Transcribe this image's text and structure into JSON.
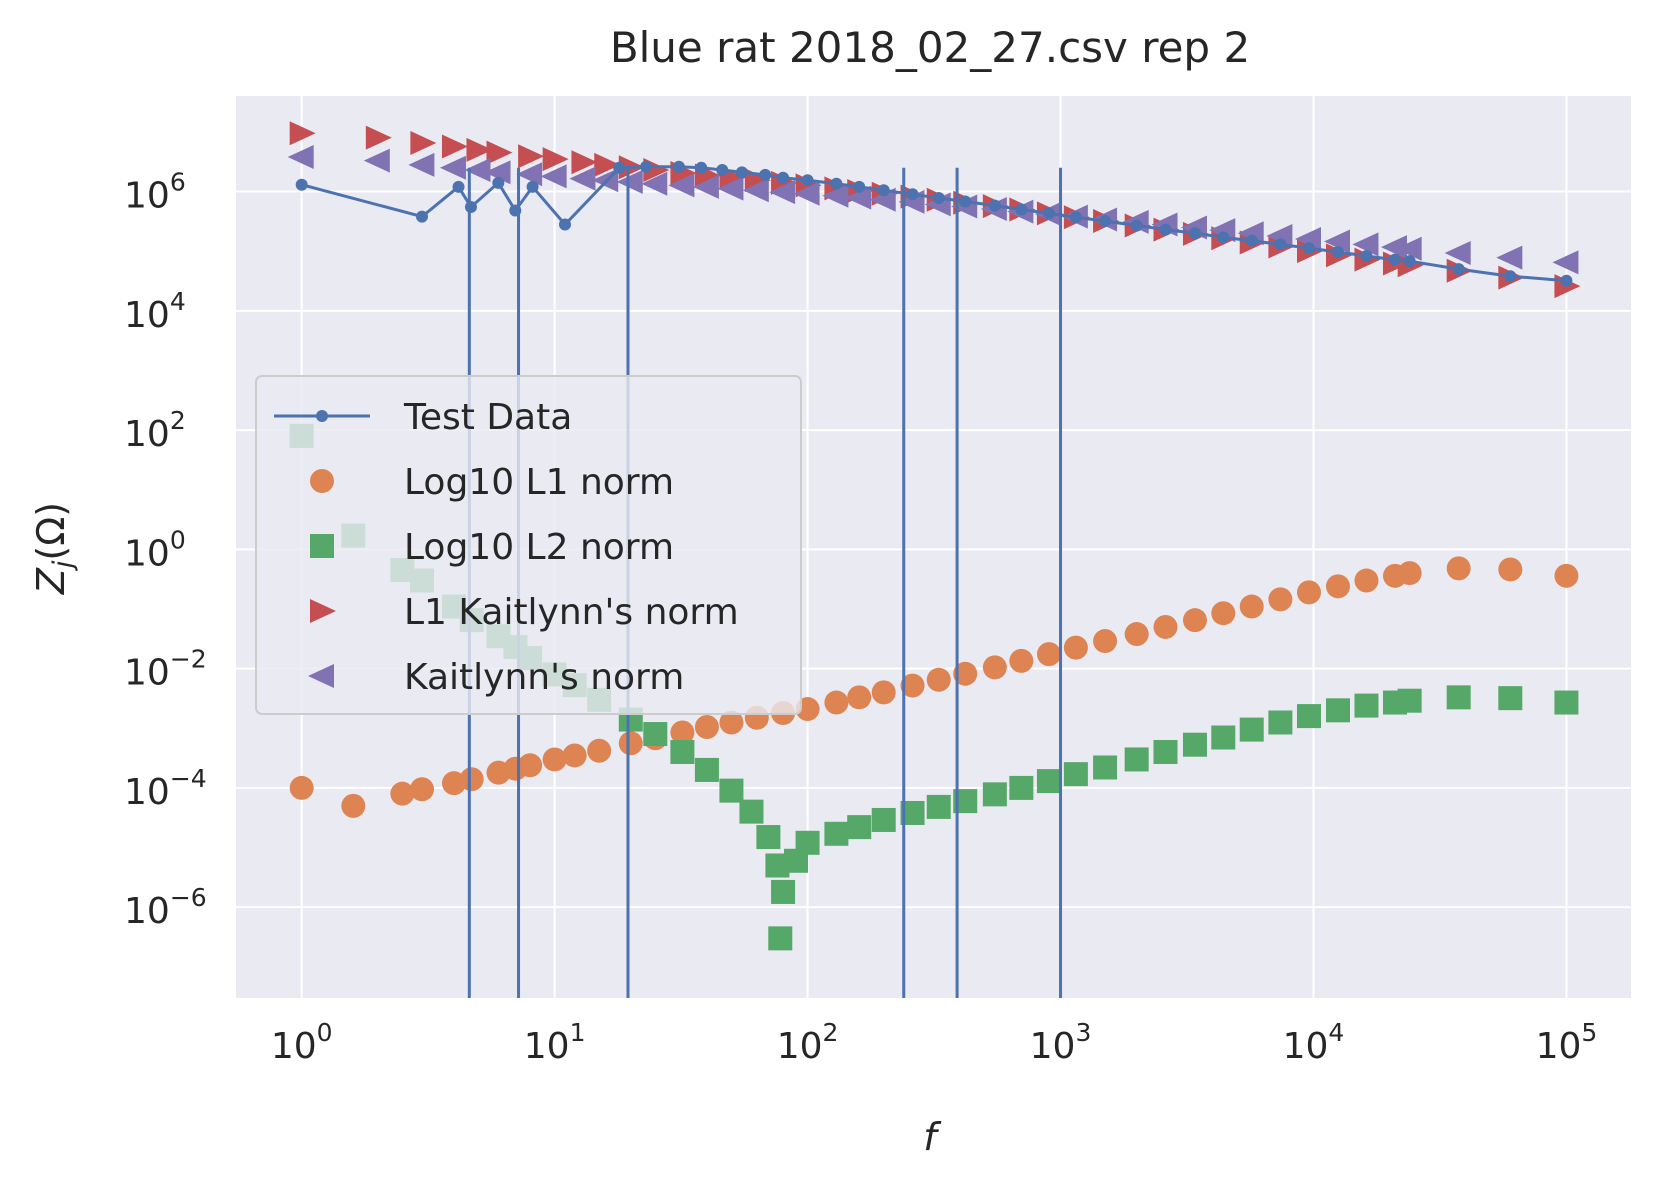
{
  "chart_data": {
    "type": "scatter",
    "title": "Blue rat 2018_02_27.csv rep 2",
    "xlabel": "f",
    "ylabel": "Z_j(Ω)",
    "xscale": "log",
    "yscale": "log",
    "xlim": [
      0.55,
      180000
    ],
    "ylim": [
      3e-08,
      40000000.0
    ],
    "x_ticks": [
      {
        "base": "10",
        "exp": "0",
        "value": 1
      },
      {
        "base": "10",
        "exp": "1",
        "value": 10
      },
      {
        "base": "10",
        "exp": "2",
        "value": 100
      },
      {
        "base": "10",
        "exp": "3",
        "value": 1000
      },
      {
        "base": "10",
        "exp": "4",
        "value": 10000
      },
      {
        "base": "10",
        "exp": "5",
        "value": 100000
      }
    ],
    "y_ticks": [
      {
        "base": "10",
        "exp": "−6",
        "value": 1e-06
      },
      {
        "base": "10",
        "exp": "−4",
        "value": 0.0001
      },
      {
        "base": "10",
        "exp": "−2",
        "value": 0.01
      },
      {
        "base": "10",
        "exp": "0",
        "value": 1
      },
      {
        "base": "10",
        "exp": "2",
        "value": 100
      },
      {
        "base": "10",
        "exp": "4",
        "value": 10000
      },
      {
        "base": "10",
        "exp": "6",
        "value": 1000000
      }
    ],
    "grid": true,
    "legend_position": "center-left",
    "series": [
      {
        "name": "Test Data",
        "marker": "line-dot",
        "color": "#4c72b0",
        "points": [
          [
            1.0,
            1300000.0
          ],
          [
            2.99,
            380000.0
          ],
          [
            4.17,
            1200000.0
          ],
          [
            4.67,
            550000.0
          ],
          [
            5.99,
            1400000.0
          ],
          [
            6.99,
            480000.0
          ],
          [
            8.18,
            1200000.0
          ],
          [
            10.99,
            280000.0
          ],
          [
            18.0,
            2500000.0
          ],
          [
            23.0,
            2600000.0
          ],
          [
            31.0,
            2600000.0
          ],
          [
            38.0,
            2500000.0
          ],
          [
            46.0,
            2300000.0
          ],
          [
            55.0,
            2100000.0
          ],
          [
            68.0,
            1900000.0
          ],
          [
            80.0,
            1700000.0
          ],
          [
            100.0,
            1550000.0
          ],
          [
            130.0,
            1350000.0
          ],
          [
            160.0,
            1200000.0
          ],
          [
            200.0,
            1050000.0
          ],
          [
            260.0,
            900000.0
          ],
          [
            330.0,
            780000.0
          ],
          [
            420.0,
            680000.0
          ],
          [
            550.0,
            580000.0
          ],
          [
            700.0,
            500000.0
          ],
          [
            900.0,
            430000.0
          ],
          [
            1150.0,
            370000.0
          ],
          [
            1500.0,
            320000.0
          ],
          [
            2000.0,
            270000.0
          ],
          [
            2600.0,
            230000.0
          ],
          [
            3400.0,
            200000.0
          ],
          [
            4400.0,
            170000.0
          ],
          [
            5700.0,
            150000.0
          ],
          [
            7400.0,
            130000.0
          ],
          [
            9600.0,
            112000.0
          ],
          [
            12500.0,
            97000.0
          ],
          [
            16200.0,
            83000.0
          ],
          [
            21000.0,
            72000.0
          ],
          [
            24000.0,
            68000.0
          ],
          [
            37500.0,
            50000.0
          ],
          [
            60000.0,
            38000.0
          ],
          [
            100000.0,
            32000.0
          ]
        ],
        "vertical_drops_x": [
          4.6,
          7.2,
          19.5,
          240.0,
          390.0,
          1000.0
        ]
      },
      {
        "name": "Log10 L1 norm",
        "marker": "circle",
        "color": "#dd8452",
        "points": [
          [
            1.0,
            0.0001
          ],
          [
            1.6,
            5e-05
          ],
          [
            2.5,
            8e-05
          ],
          [
            2.99,
            9.5e-05
          ],
          [
            4.0,
            0.00012
          ],
          [
            4.7,
            0.00014
          ],
          [
            6.0,
            0.00018
          ],
          [
            7.0,
            0.00021
          ],
          [
            8.0,
            0.00024
          ],
          [
            10.0,
            0.0003
          ],
          [
            12.0,
            0.00035
          ],
          [
            15.0,
            0.00042
          ],
          [
            20.0,
            0.00056
          ],
          [
            25.0,
            0.00068
          ],
          [
            32.0,
            0.00085
          ],
          [
            40.0,
            0.00105
          ],
          [
            50.0,
            0.00125
          ],
          [
            63.0,
            0.0015
          ],
          [
            80.0,
            0.0018
          ],
          [
            100.0,
            0.0021
          ],
          [
            130.0,
            0.0027
          ],
          [
            160.0,
            0.0033
          ],
          [
            200.0,
            0.004
          ],
          [
            260.0,
            0.0052
          ],
          [
            330.0,
            0.0065
          ],
          [
            420.0,
            0.0082
          ],
          [
            550.0,
            0.0105
          ],
          [
            700.0,
            0.0135
          ],
          [
            900.0,
            0.0175
          ],
          [
            1150.0,
            0.0225
          ],
          [
            1500.0,
            0.029
          ],
          [
            2000.0,
            0.038
          ],
          [
            2600.0,
            0.05
          ],
          [
            3400.0,
            0.065
          ],
          [
            4400.0,
            0.085
          ],
          [
            5700.0,
            0.11
          ],
          [
            7400.0,
            0.145
          ],
          [
            9600.0,
            0.19
          ],
          [
            12500.0,
            0.24
          ],
          [
            16200.0,
            0.3
          ],
          [
            21000.0,
            0.36
          ],
          [
            24000.0,
            0.4
          ],
          [
            37500.0,
            0.48
          ],
          [
            60000.0,
            0.46
          ],
          [
            100000.0,
            0.36
          ]
        ]
      },
      {
        "name": "Log10 L2 norm",
        "marker": "square",
        "color": "#55a868",
        "points": [
          [
            1.0,
            80.0
          ],
          [
            1.6,
            1.7
          ],
          [
            2.5,
            0.45
          ],
          [
            2.99,
            0.3
          ],
          [
            4.0,
            0.11
          ],
          [
            4.7,
            0.065
          ],
          [
            6.0,
            0.035
          ],
          [
            7.0,
            0.023
          ],
          [
            8.0,
            0.015
          ],
          [
            10.0,
            0.008
          ],
          [
            12.0,
            0.0053
          ],
          [
            15.0,
            0.003
          ],
          [
            20.0,
            0.0014
          ],
          [
            25.0,
            0.0008
          ],
          [
            32.0,
            0.0004
          ],
          [
            40.0,
            0.0002
          ],
          [
            50.0,
            9e-05
          ],
          [
            60.0,
            4e-05
          ],
          [
            70.0,
            1.5e-05
          ],
          [
            76.0,
            5e-06
          ],
          [
            80.0,
            1.8e-06
          ],
          [
            78.0,
            3e-07
          ],
          [
            90.0,
            6e-06
          ],
          [
            100.0,
            1.2e-05
          ],
          [
            130.0,
            1.7e-05
          ],
          [
            160.0,
            2.2e-05
          ],
          [
            200.0,
            2.9e-05
          ],
          [
            260.0,
            3.8e-05
          ],
          [
            330.0,
            4.8e-05
          ],
          [
            420.0,
            6e-05
          ],
          [
            550.0,
            7.8e-05
          ],
          [
            700.0,
            0.0001
          ],
          [
            900.0,
            0.00013
          ],
          [
            1150.0,
            0.00017
          ],
          [
            1500.0,
            0.00022
          ],
          [
            2000.0,
            0.0003
          ],
          [
            2600.0,
            0.0004
          ],
          [
            3400.0,
            0.00053
          ],
          [
            4400.0,
            0.0007
          ],
          [
            5700.0,
            0.00095
          ],
          [
            7400.0,
            0.00125
          ],
          [
            9600.0,
            0.0016
          ],
          [
            12500.0,
            0.002
          ],
          [
            16200.0,
            0.0024
          ],
          [
            21000.0,
            0.0027
          ],
          [
            24000.0,
            0.0029
          ],
          [
            37500.0,
            0.0033
          ],
          [
            60000.0,
            0.0032
          ],
          [
            100000.0,
            0.0027
          ]
        ]
      },
      {
        "name": "L1 Kaitlynn's norm",
        "marker": "triangle-right",
        "color": "#c44e52",
        "points": [
          [
            1.0,
            9500000.0
          ],
          [
            2.0,
            8000000.0
          ],
          [
            3.0,
            6500000.0
          ],
          [
            4.0,
            5700000.0
          ],
          [
            5.0,
            5000000.0
          ],
          [
            6.0,
            4500000.0
          ],
          [
            8.0,
            3900000.0
          ],
          [
            10.0,
            3500000.0
          ],
          [
            13.0,
            3100000.0
          ],
          [
            16.0,
            2800000.0
          ],
          [
            20.0,
            2550000.0
          ],
          [
            25.0,
            2300000.0
          ],
          [
            32.0,
            2050000.0
          ],
          [
            40.0,
            1850000.0
          ],
          [
            50.0,
            1700000.0
          ],
          [
            63.0,
            1550000.0
          ],
          [
            80.0,
            1400000.0
          ],
          [
            100.0,
            1270000.0
          ],
          [
            130.0,
            1130000.0
          ],
          [
            160.0,
            1020000.0
          ],
          [
            200.0,
            920000.0
          ],
          [
            260.0,
            820000.0
          ],
          [
            330.0,
            730000.0
          ],
          [
            420.0,
            650000.0
          ],
          [
            550.0,
            570000.0
          ],
          [
            700.0,
            500000.0
          ],
          [
            900.0,
            430000.0
          ],
          [
            1150.0,
            370000.0
          ],
          [
            1500.0,
            320000.0
          ],
          [
            2000.0,
            270000.0
          ],
          [
            2600.0,
            230000.0
          ],
          [
            3400.0,
            195000.0
          ],
          [
            4400.0,
            165000.0
          ],
          [
            5700.0,
            140000.0
          ],
          [
            7400.0,
            120000.0
          ],
          [
            9600.0,
            100000.0
          ],
          [
            12500.0,
            85000.0
          ],
          [
            16200.0,
            72000.0
          ],
          [
            21000.0,
            62000.0
          ],
          [
            24000.0,
            58000.0
          ],
          [
            37500.0,
            47000.0
          ],
          [
            60000.0,
            36000.0
          ],
          [
            100000.0,
            26000.0
          ]
        ]
      },
      {
        "name": "Kaitlynn's norm",
        "marker": "triangle-left",
        "color": "#8172b3",
        "points": [
          [
            1.0,
            3800000.0
          ],
          [
            2.0,
            3300000.0
          ],
          [
            3.0,
            2800000.0
          ],
          [
            4.0,
            2500000.0
          ],
          [
            5.0,
            2300000.0
          ],
          [
            6.0,
            2100000.0
          ],
          [
            8.0,
            1950000.0
          ],
          [
            10.0,
            1800000.0
          ],
          [
            13.0,
            1650000.0
          ],
          [
            16.0,
            1550000.0
          ],
          [
            20.0,
            1450000.0
          ],
          [
            25.0,
            1350000.0
          ],
          [
            32.0,
            1270000.0
          ],
          [
            40.0,
            1200000.0
          ],
          [
            50.0,
            1120000.0
          ],
          [
            63.0,
            1050000.0
          ],
          [
            80.0,
            980000.0
          ],
          [
            100.0,
            920000.0
          ],
          [
            130.0,
            850000.0
          ],
          [
            160.0,
            790000.0
          ],
          [
            200.0,
            730000.0
          ],
          [
            260.0,
            670000.0
          ],
          [
            330.0,
            610000.0
          ],
          [
            420.0,
            560000.0
          ],
          [
            550.0,
            510000.0
          ],
          [
            700.0,
            460000.0
          ],
          [
            900.0,
            420000.0
          ],
          [
            1150.0,
            380000.0
          ],
          [
            1500.0,
            340000.0
          ],
          [
            2000.0,
            310000.0
          ],
          [
            2600.0,
            280000.0
          ],
          [
            3400.0,
            250000.0
          ],
          [
            4400.0,
            225000.0
          ],
          [
            5700.0,
            200000.0
          ],
          [
            7400.0,
            180000.0
          ],
          [
            9600.0,
            160000.0
          ],
          [
            12500.0,
            145000.0
          ],
          [
            16200.0,
            130000.0
          ],
          [
            21000.0,
            117000.0
          ],
          [
            24000.0,
            110000.0
          ],
          [
            37500.0,
            93000.0
          ],
          [
            60000.0,
            78000.0
          ],
          [
            100000.0,
            65000.0
          ]
        ]
      }
    ]
  }
}
